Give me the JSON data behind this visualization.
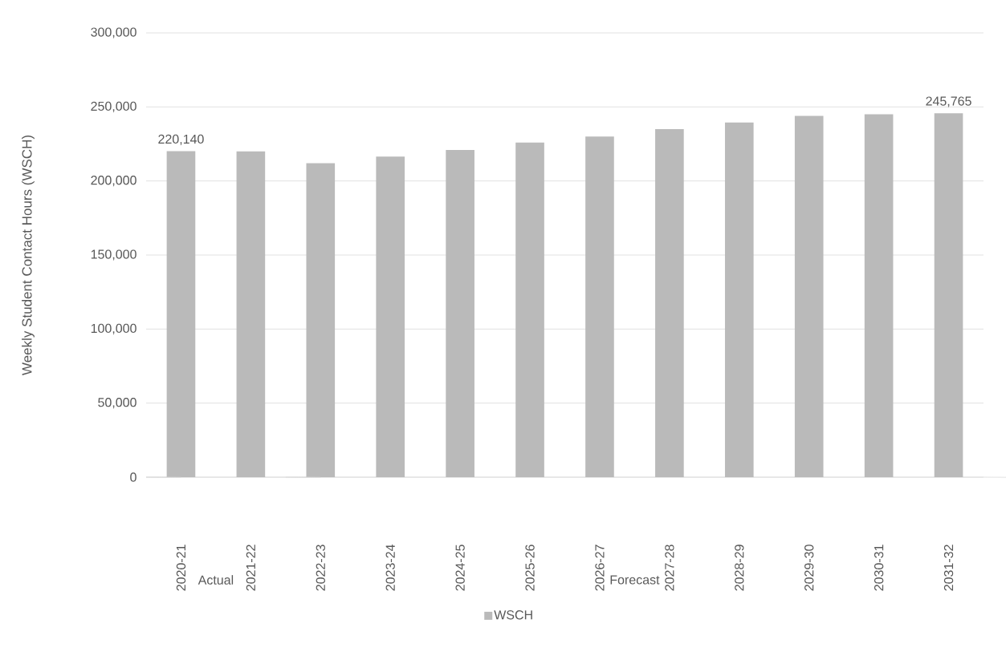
{
  "chart_data": {
    "type": "bar",
    "ylabel": "Weekly Student Contact Hours (WSCH)",
    "categories": [
      "2020-21",
      "2021-22",
      "2022-23",
      "2023-24",
      "2024-25",
      "2025-26",
      "2026-27",
      "2027-28",
      "2028-29",
      "2029-30",
      "2030-31",
      "2031-32"
    ],
    "series": [
      {
        "name": "WSCH",
        "color": "#bababa",
        "values": [
          220140,
          220000,
          212000,
          216500,
          221000,
          226000,
          230000,
          235000,
          239500,
          244000,
          245000,
          245765
        ],
        "value_labels": [
          "220,140",
          null,
          null,
          null,
          null,
          null,
          null,
          null,
          null,
          null,
          null,
          "245,765"
        ]
      }
    ],
    "ylim": [
      0,
      300000
    ],
    "yticks": [
      {
        "value": 0,
        "label": "0"
      },
      {
        "value": 50000,
        "label": "50,000"
      },
      {
        "value": 100000,
        "label": "100,000"
      },
      {
        "value": 150000,
        "label": "150,000"
      },
      {
        "value": 200000,
        "label": "200,000"
      },
      {
        "value": 250000,
        "label": "250,000"
      },
      {
        "value": 300000,
        "label": "300,000"
      }
    ],
    "grid": "y",
    "legend": "bottom",
    "annotations": [
      "Actual",
      "Forecast"
    ]
  }
}
